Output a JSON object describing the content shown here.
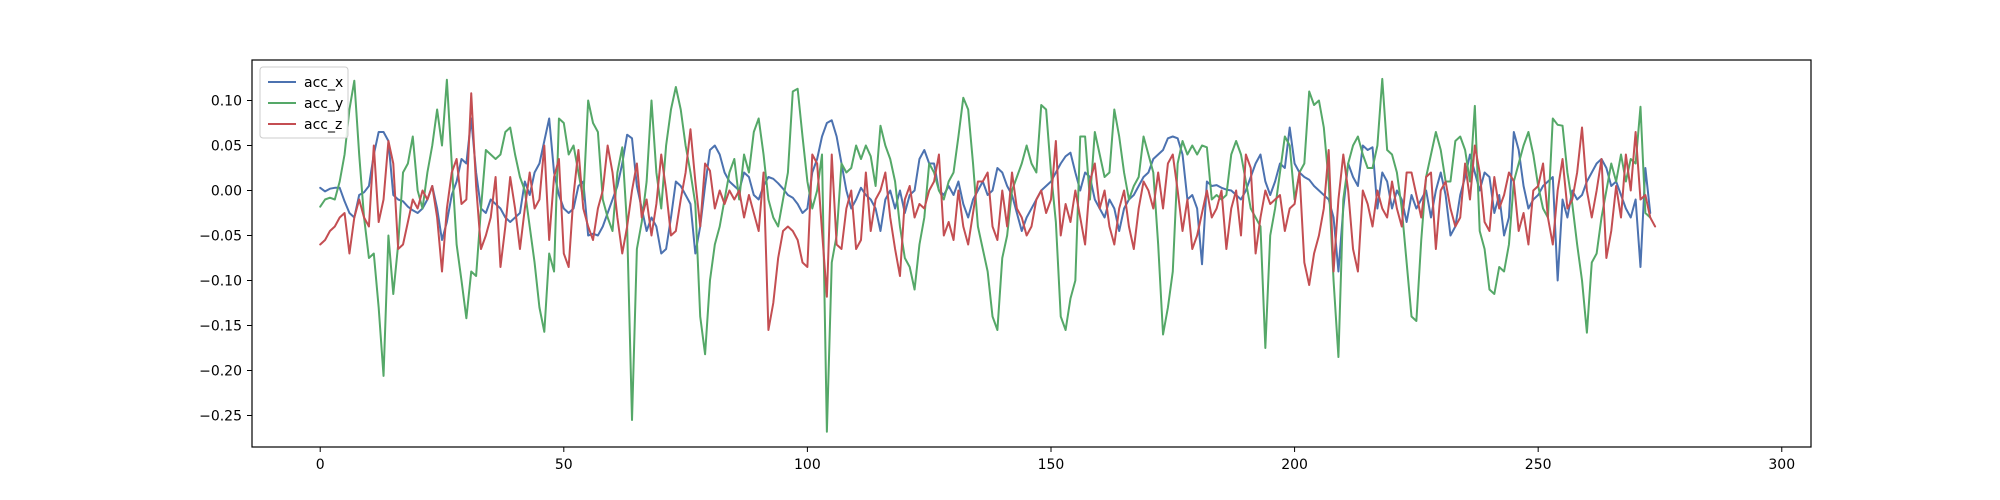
{
  "chart_data": {
    "type": "line",
    "title": "",
    "xlabel": "",
    "ylabel": "",
    "xlim": [
      -14,
      306
    ],
    "ylim": [
      -0.285,
      0.145
    ],
    "xticks": [
      0,
      50,
      100,
      150,
      200,
      250,
      300
    ],
    "yticks": [
      0.1,
      0.05,
      0.0,
      -0.05,
      -0.1,
      -0.15,
      -0.2,
      -0.25
    ],
    "xtick_labels": [
      "0",
      "50",
      "100",
      "150",
      "200",
      "250",
      "300"
    ],
    "ytick_labels": [
      "0.10",
      "0.05",
      "0.00",
      "−0.05",
      "−0.10",
      "−0.15",
      "−0.20",
      "−0.25"
    ],
    "grid": false,
    "legend_position": "top-left",
    "x_start": 0,
    "x_step": 1,
    "series": [
      {
        "name": "acc_x",
        "color": "#4c72b0",
        "values": [
          0.003,
          -0.001,
          0.002,
          0.003,
          0.003,
          -0.012,
          -0.025,
          -0.03,
          -0.005,
          -0.002,
          0.005,
          0.04,
          0.065,
          0.065,
          0.055,
          -0.005,
          -0.01,
          -0.012,
          -0.018,
          -0.022,
          -0.025,
          -0.02,
          -0.01,
          0.005,
          -0.02,
          -0.055,
          -0.035,
          -0.005,
          0.01,
          0.035,
          0.03,
          0.08,
          0.02,
          -0.02,
          -0.025,
          -0.01,
          -0.015,
          -0.02,
          -0.03,
          -0.035,
          -0.03,
          -0.025,
          0.01,
          -0.005,
          0.02,
          0.03,
          0.055,
          0.08,
          0.02,
          -0.005,
          -0.02,
          -0.025,
          -0.02,
          0.005,
          0.01,
          -0.05,
          -0.048,
          -0.05,
          -0.04,
          -0.025,
          -0.01,
          0.005,
          0.03,
          0.062,
          0.058,
          0.005,
          -0.02,
          -0.045,
          -0.03,
          -0.04,
          -0.07,
          -0.065,
          -0.03,
          0.01,
          0.005,
          -0.005,
          -0.015,
          -0.07,
          -0.04,
          0.005,
          0.045,
          0.05,
          0.04,
          0.02,
          0.01,
          0.005,
          0.0,
          0.02,
          0.015,
          -0.005,
          -0.01,
          0.005,
          0.015,
          0.013,
          0.008,
          0.002,
          -0.005,
          -0.008,
          -0.015,
          -0.025,
          -0.02,
          0.02,
          0.035,
          0.06,
          0.075,
          0.078,
          0.06,
          0.03,
          0.0,
          -0.02,
          -0.01,
          0.003,
          -0.005,
          -0.01,
          -0.02,
          -0.045,
          -0.01,
          0.0,
          -0.02,
          0.0,
          -0.025,
          -0.005,
          0.0,
          0.035,
          0.045,
          0.03,
          0.03,
          0.0,
          -0.005,
          0.005,
          -0.005,
          0.01,
          -0.015,
          -0.03,
          -0.01,
          0.0,
          0.01,
          -0.005,
          0.0,
          0.025,
          0.02,
          0.005,
          -0.005,
          -0.025,
          -0.045,
          -0.03,
          -0.02,
          -0.01,
          0.0,
          0.005,
          0.01,
          0.02,
          0.03,
          0.038,
          0.042,
          0.02,
          0.0,
          0.02,
          0.015,
          -0.01,
          -0.02,
          -0.03,
          -0.01,
          -0.02,
          -0.045,
          -0.02,
          -0.01,
          -0.005,
          0.005,
          0.015,
          0.02,
          0.035,
          0.04,
          0.045,
          0.058,
          0.06,
          0.058,
          0.04,
          -0.01,
          -0.005,
          -0.02,
          -0.082,
          0.01,
          0.005,
          0.006,
          0.003,
          0.001,
          0.0,
          -0.005,
          -0.01,
          0.0,
          0.015,
          0.03,
          0.04,
          0.01,
          -0.005,
          0.01,
          0.03,
          0.025,
          0.07,
          0.03,
          0.02,
          0.015,
          0.012,
          0.005,
          0.0,
          -0.005,
          -0.01,
          -0.03,
          -0.09,
          -0.02,
          0.03,
          0.015,
          0.005,
          0.05,
          0.045,
          0.048,
          -0.02,
          0.02,
          0.01,
          -0.02,
          0.0,
          -0.01,
          -0.035,
          -0.005,
          -0.02,
          -0.01,
          0.0,
          -0.03,
          0.0,
          0.02,
          -0.005,
          -0.05,
          -0.04,
          -0.005,
          0.015,
          0.04,
          0.02,
          0.0,
          0.02,
          0.015,
          -0.025,
          -0.005,
          -0.05,
          -0.03,
          0.065,
          0.045,
          0.005,
          -0.02,
          -0.01,
          -0.005,
          0.005,
          0.01,
          0.015,
          -0.1,
          -0.01,
          -0.03,
          0.0,
          -0.01,
          -0.005,
          0.01,
          0.02,
          0.03,
          0.035,
          0.025,
          0.005,
          0.01,
          -0.005,
          -0.02,
          -0.03,
          -0.01,
          -0.085,
          0.025,
          -0.025
        ]
      },
      {
        "name": "acc_y",
        "color": "#55a868",
        "values": [
          -0.018,
          -0.01,
          -0.008,
          -0.01,
          0.01,
          0.04,
          0.09,
          0.122,
          0.04,
          -0.03,
          -0.075,
          -0.07,
          -0.13,
          -0.206,
          -0.05,
          -0.115,
          -0.06,
          0.02,
          0.03,
          0.06,
          0.0,
          -0.02,
          0.02,
          0.05,
          0.09,
          0.05,
          0.123,
          0.03,
          -0.06,
          -0.1,
          -0.142,
          -0.09,
          -0.095,
          -0.02,
          0.045,
          0.04,
          0.035,
          0.04,
          0.065,
          0.07,
          0.04,
          0.015,
          0.0,
          -0.04,
          -0.08,
          -0.13,
          -0.157,
          -0.07,
          -0.09,
          0.08,
          0.075,
          0.04,
          0.05,
          0.02,
          -0.01,
          0.1,
          0.075,
          0.065,
          -0.01,
          -0.03,
          -0.045,
          0.02,
          0.048,
          -0.04,
          -0.255,
          -0.065,
          -0.035,
          0.01,
          0.1,
          0.02,
          -0.02,
          0.05,
          0.09,
          0.115,
          0.09,
          0.05,
          0.02,
          -0.015,
          -0.14,
          -0.182,
          -0.1,
          -0.06,
          -0.04,
          -0.01,
          0.02,
          0.035,
          -0.01,
          0.04,
          0.02,
          0.065,
          0.08,
          0.04,
          -0.01,
          -0.03,
          -0.04,
          -0.01,
          0.02,
          0.11,
          0.113,
          0.06,
          0.01,
          -0.02,
          0.0,
          0.04,
          -0.268,
          -0.08,
          -0.05,
          0.03,
          0.02,
          0.025,
          0.05,
          0.035,
          0.05,
          0.038,
          0.005,
          0.072,
          0.05,
          0.035,
          0.01,
          -0.04,
          -0.075,
          -0.085,
          -0.11,
          -0.06,
          -0.03,
          0.03,
          0.02,
          0.0,
          -0.01,
          0.01,
          0.02,
          0.06,
          0.103,
          0.09,
          0.03,
          -0.04,
          -0.065,
          -0.09,
          -0.14,
          -0.155,
          -0.075,
          -0.05,
          0.0,
          0.015,
          0.03,
          0.05,
          0.03,
          0.02,
          0.095,
          0.09,
          0.02,
          -0.035,
          -0.14,
          -0.155,
          -0.12,
          -0.1,
          0.06,
          0.06,
          -0.01,
          0.065,
          0.04,
          0.015,
          0.02,
          0.09,
          0.06,
          0.02,
          -0.01,
          0.005,
          0.015,
          0.06,
          0.04,
          0.02,
          -0.06,
          -0.16,
          -0.13,
          -0.09,
          0.03,
          0.055,
          0.04,
          0.05,
          0.04,
          0.05,
          0.048,
          -0.01,
          -0.005,
          -0.01,
          -0.005,
          0.04,
          0.055,
          0.04,
          0.01,
          -0.02,
          -0.03,
          -0.04,
          -0.175,
          -0.05,
          -0.02,
          0.02,
          0.06,
          0.05,
          -0.01,
          0.02,
          0.03,
          0.11,
          0.095,
          0.1,
          0.07,
          0.01,
          -0.1,
          -0.185,
          -0.01,
          0.03,
          0.05,
          0.06,
          0.04,
          0.025,
          0.025,
          0.05,
          0.124,
          0.045,
          0.04,
          0.02,
          -0.02,
          -0.08,
          -0.14,
          -0.145,
          -0.055,
          0.015,
          0.04,
          0.065,
          0.045,
          0.01,
          0.01,
          0.055,
          0.06,
          0.045,
          0.01,
          0.094,
          -0.045,
          -0.065,
          -0.11,
          -0.115,
          -0.085,
          -0.09,
          -0.06,
          0.01,
          0.03,
          0.05,
          0.065,
          0.04,
          0.005,
          -0.02,
          -0.03,
          0.08,
          0.073,
          0.072,
          0.02,
          -0.015,
          -0.06,
          -0.1,
          -0.158,
          -0.08,
          -0.07,
          -0.03,
          0.0,
          0.03,
          0.01,
          0.04,
          0.01,
          0.035,
          0.03,
          0.093,
          -0.025,
          -0.03
        ]
      },
      {
        "name": "acc_z",
        "color": "#c44e52",
        "values": [
          -0.06,
          -0.055,
          -0.045,
          -0.04,
          -0.03,
          -0.025,
          -0.07,
          -0.03,
          -0.01,
          -0.03,
          -0.04,
          0.05,
          -0.035,
          -0.01,
          0.055,
          0.03,
          -0.065,
          -0.06,
          -0.035,
          -0.01,
          -0.02,
          0.0,
          -0.01,
          0.005,
          -0.03,
          -0.09,
          -0.02,
          0.02,
          0.035,
          -0.015,
          -0.01,
          0.108,
          0.005,
          -0.065,
          -0.05,
          -0.03,
          0.015,
          -0.085,
          -0.04,
          0.015,
          -0.02,
          -0.065,
          -0.02,
          0.02,
          -0.02,
          -0.01,
          0.05,
          -0.055,
          0.015,
          0.035,
          -0.07,
          -0.085,
          -0.005,
          0.045,
          -0.02,
          -0.04,
          -0.055,
          -0.02,
          0.0,
          0.05,
          0.02,
          -0.03,
          -0.07,
          -0.04,
          0.0,
          0.03,
          -0.03,
          -0.01,
          -0.05,
          -0.015,
          0.04,
          0.0,
          -0.05,
          -0.045,
          -0.01,
          0.02,
          0.068,
          0.01,
          -0.04,
          0.03,
          0.022,
          -0.02,
          0.0,
          -0.015,
          0.0,
          -0.01,
          0.0,
          -0.03,
          -0.005,
          -0.025,
          -0.045,
          0.02,
          -0.155,
          -0.125,
          -0.075,
          -0.045,
          -0.04,
          -0.045,
          -0.055,
          -0.08,
          -0.085,
          0.04,
          0.03,
          -0.045,
          -0.118,
          0.04,
          -0.06,
          -0.065,
          -0.02,
          0.0,
          -0.065,
          -0.055,
          0.02,
          -0.045,
          -0.01,
          0.0,
          0.02,
          -0.03,
          -0.065,
          -0.095,
          -0.01,
          0.005,
          -0.03,
          -0.015,
          -0.02,
          0.0,
          0.01,
          0.04,
          -0.05,
          -0.035,
          -0.055,
          0.0,
          -0.04,
          -0.06,
          -0.025,
          0.01,
          0.01,
          0.02,
          -0.04,
          -0.055,
          0.0,
          -0.04,
          0.02,
          -0.02,
          -0.03,
          -0.05,
          -0.04,
          -0.01,
          0.0,
          -0.025,
          -0.01,
          0.055,
          -0.05,
          -0.015,
          -0.035,
          0.0,
          -0.03,
          -0.06,
          0.01,
          0.03,
          -0.02,
          0.0,
          -0.04,
          -0.06,
          -0.02,
          0.0,
          -0.04,
          -0.065,
          -0.02,
          0.01,
          0.0,
          -0.02,
          0.02,
          -0.02,
          0.03,
          0.04,
          0.0,
          -0.045,
          -0.01,
          -0.065,
          -0.05,
          -0.025,
          0.0,
          -0.03,
          -0.02,
          0.0,
          -0.065,
          -0.02,
          0.0,
          -0.05,
          0.04,
          0.025,
          -0.07,
          -0.03,
          0.0,
          -0.015,
          -0.01,
          -0.005,
          -0.045,
          -0.02,
          -0.015,
          0.02,
          -0.08,
          -0.105,
          -0.07,
          -0.05,
          -0.02,
          0.045,
          -0.09,
          -0.01,
          0.04,
          0.0,
          -0.065,
          -0.09,
          0.0,
          -0.015,
          -0.04,
          0.0,
          -0.02,
          -0.03,
          0.01,
          -0.02,
          -0.04,
          0.02,
          0.02,
          -0.005,
          -0.03,
          0.015,
          0.02,
          -0.065,
          0.0,
          0.01,
          -0.02,
          -0.04,
          -0.03,
          0.03,
          -0.01,
          0.05,
          0.02,
          -0.035,
          -0.045,
          0.015,
          -0.02,
          -0.005,
          0.02,
          0.01,
          -0.045,
          -0.025,
          -0.06,
          0.0,
          0.005,
          0.03,
          -0.03,
          -0.06,
          0.0,
          0.035,
          -0.02,
          -0.01,
          0.02,
          0.07,
          0.0,
          -0.03,
          0.0,
          0.035,
          -0.075,
          -0.045,
          0.005,
          -0.03,
          0.04,
          0.0,
          0.065,
          -0.01,
          -0.005,
          -0.03,
          -0.04
        ]
      }
    ]
  }
}
